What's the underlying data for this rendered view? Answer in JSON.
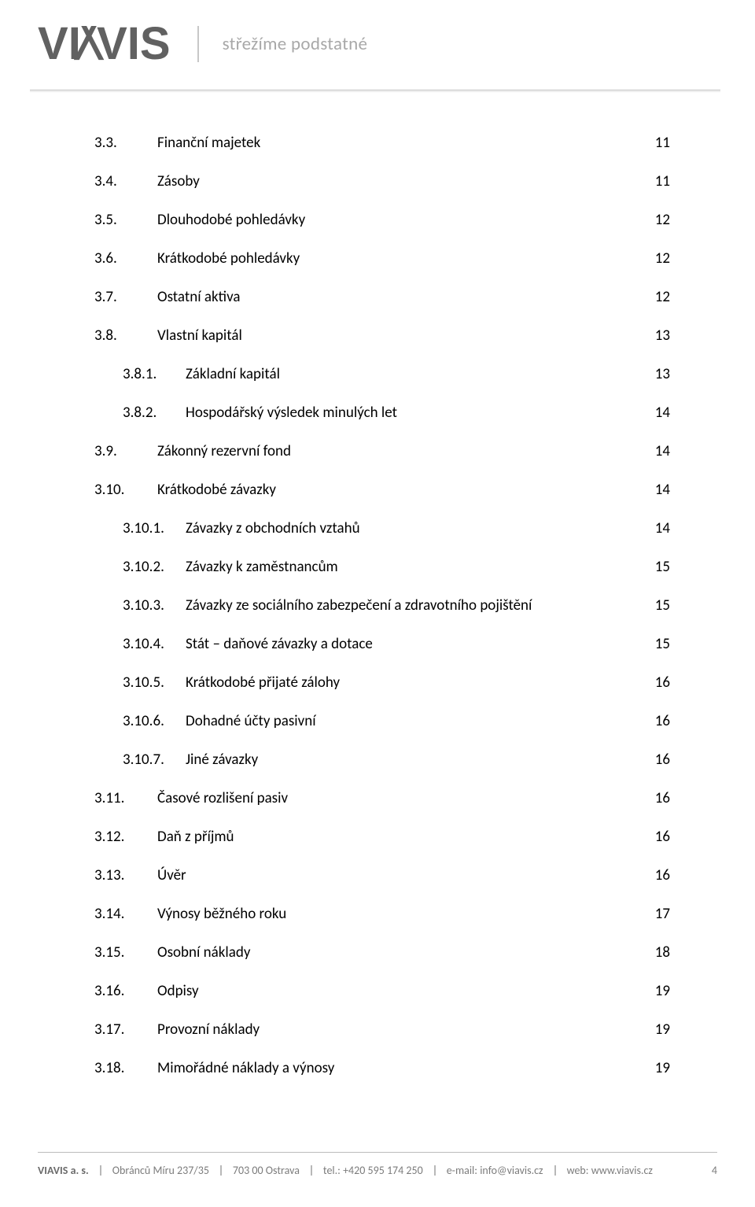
{
  "header": {
    "logo": "VIAVIS",
    "tagline": "střežíme podstatné"
  },
  "toc": [
    {
      "level": 2,
      "num": "3.3.",
      "title": "Finanční majetek",
      "page": "11"
    },
    {
      "level": 2,
      "num": "3.4.",
      "title": "Zásoby",
      "page": "11"
    },
    {
      "level": 2,
      "num": "3.5.",
      "title": "Dlouhodobé  pohledávky",
      "page": "12"
    },
    {
      "level": 2,
      "num": "3.6.",
      "title": "Krátkodobé pohledávky",
      "page": "12"
    },
    {
      "level": 2,
      "num": "3.7.",
      "title": "Ostatní aktiva",
      "page": "12"
    },
    {
      "level": 2,
      "num": "3.8.",
      "title": "Vlastní kapitál",
      "page": "13"
    },
    {
      "level": 3,
      "num": "3.8.1.",
      "title": "Základní kapitál",
      "page": "13"
    },
    {
      "level": 3,
      "num": "3.8.2.",
      "title": "Hospodářský výsledek minulých let",
      "page": "14"
    },
    {
      "level": 2,
      "num": "3.9.",
      "title": "Zákonný rezervní fond",
      "page": "14"
    },
    {
      "level": 2,
      "num": "3.10.",
      "title": "Krátkodobé závazky",
      "page": "14"
    },
    {
      "level": 3,
      "num": "3.10.1.",
      "title": "Závazky z obchodních vztahů",
      "page": "14"
    },
    {
      "level": 3,
      "num": "3.10.2.",
      "title": "Závazky k zaměstnancům",
      "page": "15"
    },
    {
      "level": 3,
      "num": "3.10.3.",
      "title": "Závazky ze sociálního zabezpečení a zdravotního pojištění",
      "page": "15"
    },
    {
      "level": 3,
      "num": "3.10.4.",
      "title": "Stát – daňové závazky a dotace",
      "page": "15"
    },
    {
      "level": 3,
      "num": "3.10.5.",
      "title": "Krátkodobé přijaté zálohy",
      "page": "16"
    },
    {
      "level": 3,
      "num": "3.10.6.",
      "title": "Dohadné účty pasivní",
      "page": "16"
    },
    {
      "level": 3,
      "num": "3.10.7.",
      "title": "Jiné závazky",
      "page": "16"
    },
    {
      "level": 2,
      "num": "3.11.",
      "title": "Časové rozlišení pasiv",
      "page": "16"
    },
    {
      "level": 2,
      "num": "3.12.",
      "title": "Daň z příjmů",
      "page": "16"
    },
    {
      "level": 2,
      "num": "3.13.",
      "title": "Úvěr",
      "page": "16"
    },
    {
      "level": 2,
      "num": "3.14.",
      "title": "Výnosy běžného roku",
      "page": "17"
    },
    {
      "level": 2,
      "num": "3.15.",
      "title": "Osobní náklady",
      "page": "18"
    },
    {
      "level": 2,
      "num": "3.16.",
      "title": "Odpisy",
      "page": "19"
    },
    {
      "level": 2,
      "num": "3.17.",
      "title": "Provozní náklady",
      "page": "19"
    },
    {
      "level": 2,
      "num": "3.18.",
      "title": "Mimořádné náklady a výnosy",
      "page": "19"
    }
  ],
  "footer": {
    "company": "VIAVIS a. s.",
    "address": "Obránců Míru 237/35",
    "city": "703 00 Ostrava",
    "tel_label": "tel.:",
    "tel": "+420 595 174 250",
    "email_label": "e-mail:",
    "email": "info@viavis.cz",
    "web_label": "web:",
    "web": "www.viavis.cz",
    "page_number": "4"
  },
  "layout": {
    "lvl2_num_width": 56,
    "lvl3_indent": 36,
    "lvl3_num_width": 68
  }
}
